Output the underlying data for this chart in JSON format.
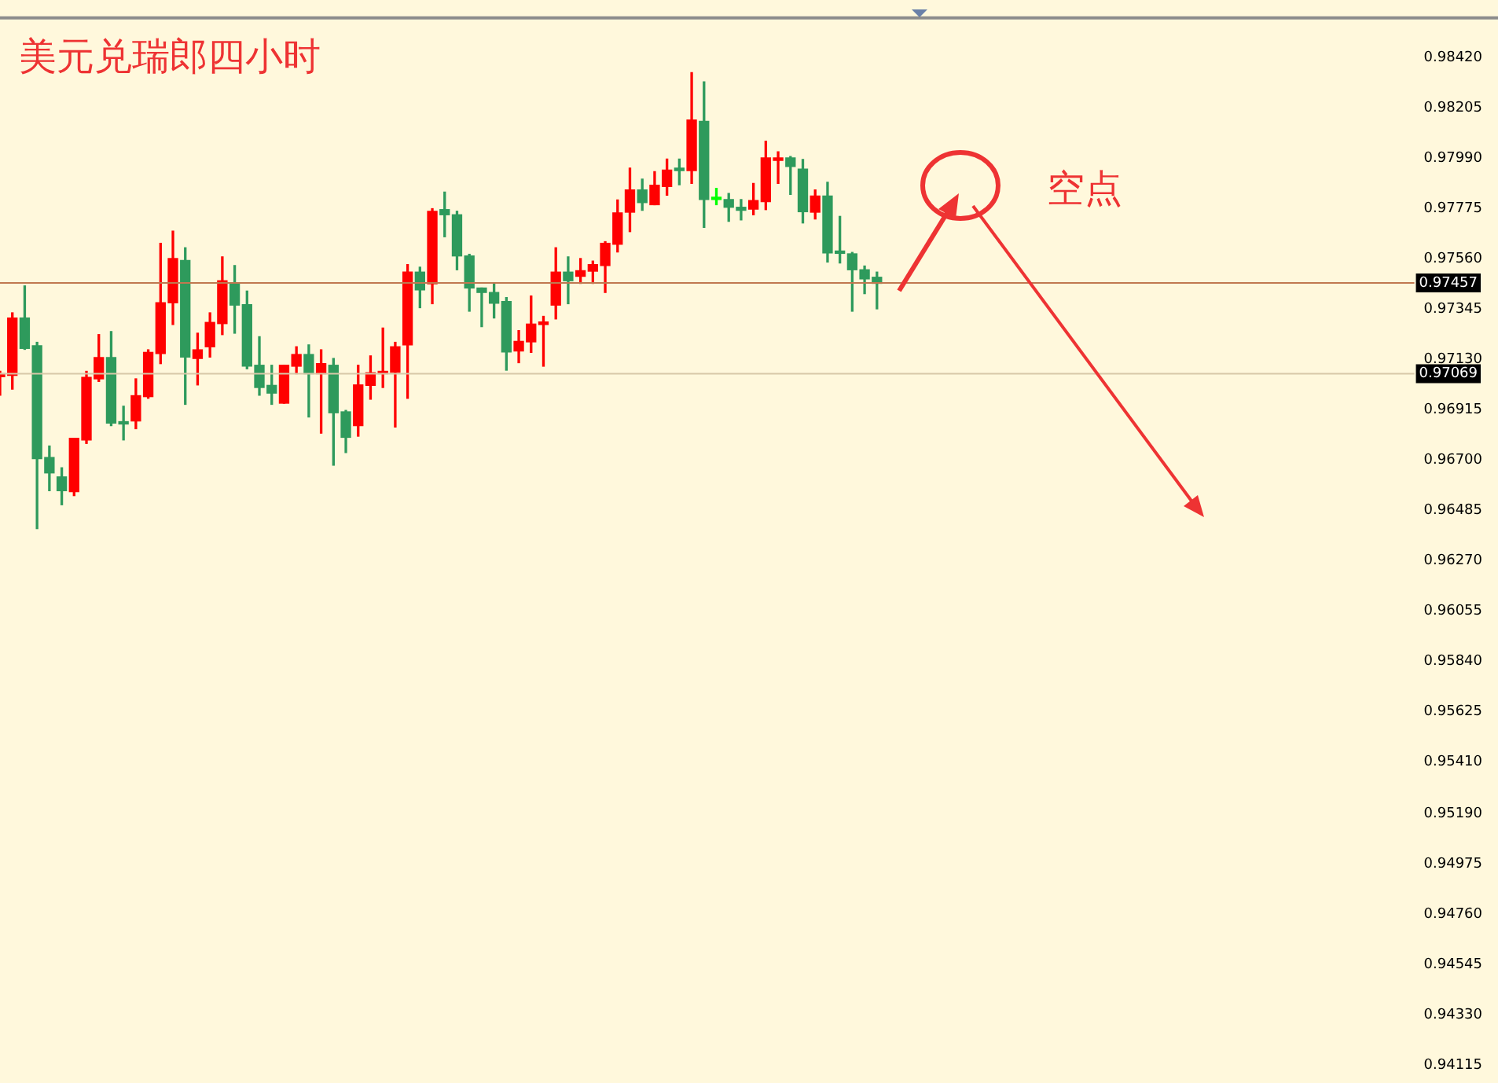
{
  "chart_data": {
    "type": "candlestick",
    "title": "美元兑瑞郎四小时",
    "categories": [
      null,
      null,
      null,
      null,
      null,
      null,
      null,
      null,
      null,
      null,
      null,
      null,
      null,
      null,
      null,
      null,
      null,
      null,
      null,
      null,
      null,
      null,
      null,
      null,
      null,
      null,
      null,
      null,
      null,
      null,
      null,
      null,
      null,
      null,
      null,
      null,
      null,
      null,
      null,
      null,
      null,
      null,
      null,
      null,
      null,
      null,
      null,
      null,
      null,
      null,
      null,
      null,
      null,
      null,
      null,
      null,
      null,
      null,
      null,
      null,
      null,
      null,
      null,
      null,
      null,
      null,
      null,
      null,
      null,
      null,
      null,
      null,
      null,
      null,
      null,
      null,
      null,
      null,
      null,
      null,
      null,
      null,
      null,
      null,
      null,
      null,
      null,
      null,
      null,
      null,
      null,
      null,
      null,
      null,
      null,
      null,
      null,
      null,
      null,
      null,
      null,
      null,
      null,
      null,
      null,
      null,
      null,
      null,
      null,
      null,
      null,
      null,
      null,
      null,
      null
    ],
    "ohlc": [
      [
        0.97056,
        0.97079,
        0.96977,
        0.97069
      ],
      [
        0.97062,
        0.97329,
        0.97003,
        0.97307
      ],
      [
        0.97307,
        0.97444,
        0.97173,
        0.97177
      ],
      [
        0.97188,
        0.97203,
        0.96407,
        0.96706
      ],
      [
        0.96711,
        0.9676,
        0.96569,
        0.96645
      ],
      [
        0.96628,
        0.96667,
        0.96509,
        0.96569
      ],
      [
        0.96565,
        0.96793,
        0.96548,
        0.96793
      ],
      [
        0.96786,
        0.97079,
        0.96771,
        0.97053
      ],
      [
        0.97047,
        0.97236,
        0.97036,
        0.97138
      ],
      [
        0.97138,
        0.97249,
        0.96847,
        0.96858
      ],
      [
        0.96858,
        0.9693,
        0.96786,
        0.96854
      ],
      [
        0.96867,
        0.97047,
        0.96834,
        0.96975
      ],
      [
        0.96971,
        0.97171,
        0.96964,
        0.9716
      ],
      [
        0.97155,
        0.97626,
        0.97112,
        0.97372
      ],
      [
        0.97372,
        0.97678,
        0.97279,
        0.97561
      ],
      [
        0.97553,
        0.97607,
        0.96938,
        0.9714
      ],
      [
        0.97134,
        0.97242,
        0.97021,
        0.97171
      ],
      [
        0.97184,
        0.97329,
        0.9714,
        0.97288
      ],
      [
        0.97283,
        0.97568,
        0.97236,
        0.97466
      ],
      [
        0.97455,
        0.97531,
        0.97242,
        0.97362
      ],
      [
        0.97364,
        0.97422,
        0.9709,
        0.97101
      ],
      [
        0.97105,
        0.97227,
        0.96977,
        0.9701
      ],
      [
        0.97019,
        0.97105,
        0.96938,
        0.96986
      ],
      [
        0.96943,
        0.97105,
        0.96943,
        0.97105
      ],
      [
        0.97101,
        0.97184,
        0.97069,
        0.97151
      ],
      [
        0.97151,
        0.97192,
        0.96884,
        0.97069
      ],
      [
        0.97069,
        0.97171,
        0.96815,
        0.97112
      ],
      [
        0.97105,
        0.97134,
        0.96678,
        0.96902
      ],
      [
        0.96906,
        0.96912,
        0.96732,
        0.96797
      ],
      [
        0.96847,
        0.97105,
        0.96802,
        0.97021
      ],
      [
        0.97019,
        0.97145,
        0.9696,
        0.97073
      ],
      [
        0.97069,
        0.97264,
        0.9701,
        0.97079
      ],
      [
        0.97075,
        0.97203,
        0.96841,
        0.97184
      ],
      [
        0.97192,
        0.97535,
        0.96964,
        0.97503
      ],
      [
        0.97503,
        0.97524,
        0.97351,
        0.97427
      ],
      [
        0.97453,
        0.97774,
        0.97368,
        0.97763
      ],
      [
        0.9777,
        0.97845,
        0.97654,
        0.97748
      ],
      [
        0.97748,
        0.97763,
        0.97513,
        0.97572
      ],
      [
        0.97572,
        0.97579,
        0.97336,
        0.97435
      ],
      [
        0.97435,
        0.97435,
        0.9727,
        0.97416
      ],
      [
        0.97416,
        0.97455,
        0.97307,
        0.9737
      ],
      [
        0.97377,
        0.97394,
        0.97084,
        0.97162
      ],
      [
        0.97166,
        0.97253,
        0.97116,
        0.97207
      ],
      [
        0.97205,
        0.97401,
        0.9716,
        0.97281
      ],
      [
        0.97279,
        0.97314,
        0.97101,
        0.9729
      ],
      [
        0.97362,
        0.97607,
        0.97303,
        0.97503
      ],
      [
        0.97503,
        0.97568,
        0.97368,
        0.97466
      ],
      [
        0.97485,
        0.97561,
        0.97455,
        0.97509
      ],
      [
        0.97507,
        0.9755,
        0.97455,
        0.97535
      ],
      [
        0.97531,
        0.97633,
        0.97416,
        0.97626
      ],
      [
        0.97622,
        0.97811,
        0.97589,
        0.97756
      ],
      [
        0.97759,
        0.97947,
        0.97676,
        0.97854
      ],
      [
        0.97854,
        0.979,
        0.97767,
        0.978
      ],
      [
        0.97791,
        0.97932,
        0.97791,
        0.97874
      ],
      [
        0.97869,
        0.97986,
        0.97832,
        0.97939
      ],
      [
        0.97941,
        0.97986,
        0.97876,
        0.97937
      ],
      [
        0.97937,
        0.98355,
        0.97882,
        0.98153
      ],
      [
        0.98147,
        0.98316,
        0.97694,
        0.97813
      ],
      [
        0.97817,
        0.97861,
        0.97791,
        0.97813
      ],
      [
        0.97813,
        0.97839,
        0.9772,
        0.9778
      ],
      [
        0.9778,
        0.97813,
        0.97726,
        0.97767
      ],
      [
        0.97772,
        0.97882,
        0.97748,
        0.97809
      ],
      [
        0.97804,
        0.98062,
        0.9777,
        0.97991
      ],
      [
        0.9798,
        0.98017,
        0.97882,
        0.97991
      ],
      [
        0.97991,
        0.97997,
        0.97835,
        0.97954
      ],
      [
        0.97943,
        0.97984,
        0.97713,
        0.97761
      ],
      [
        0.97759,
        0.97854,
        0.9773,
        0.97828
      ],
      [
        0.97828,
        0.97887,
        0.97546,
        0.97585
      ],
      [
        0.97587,
        0.97741,
        0.97542,
        0.97583
      ],
      [
        0.97581,
        0.97587,
        0.97336,
        0.97513
      ],
      [
        0.97513,
        0.97529,
        0.97411,
        0.97474
      ],
      [
        0.97481,
        0.97503,
        0.97346,
        0.97455
      ],
      null,
      null,
      null,
      null,
      null,
      null,
      null,
      null,
      null,
      null,
      null,
      null,
      null,
      null,
      null,
      null,
      null,
      null,
      null,
      null,
      null,
      null,
      null,
      null,
      null,
      null,
      null,
      null,
      null,
      null,
      null,
      null,
      null,
      null,
      null,
      null,
      null,
      null,
      null,
      null,
      null,
      null,
      null
    ],
    "colors": [
      "#ff0000",
      "#ff0000",
      "#2e9a5c",
      "#2e9a5c",
      "#2e9a5c",
      "#2e9a5c",
      "#ff0000",
      "#ff0000",
      "#ff0000",
      "#2e9a5c",
      "#2e9a5c",
      "#ff0000",
      "#ff0000",
      "#ff0000",
      "#ff0000",
      "#2e9a5c",
      "#ff0000",
      "#ff0000",
      "#ff0000",
      "#2e9a5c",
      "#2e9a5c",
      "#2e9a5c",
      "#2e9a5c",
      "#ff0000",
      "#ff0000",
      "#2e9a5c",
      "#ff0000",
      "#2e9a5c",
      "#2e9a5c",
      "#ff0000",
      "#ff0000",
      "#ff0000",
      "#ff0000",
      "#ff0000",
      "#2e9a5c",
      "#ff0000",
      "#2e9a5c",
      "#2e9a5c",
      "#2e9a5c",
      "#2e9a5c",
      "#2e9a5c",
      "#2e9a5c",
      "#ff0000",
      "#ff0000",
      "#ff0000",
      "#ff0000",
      "#2e9a5c",
      "#ff0000",
      "#ff0000",
      "#ff0000",
      "#ff0000",
      "#ff0000",
      "#2e9a5c",
      "#ff0000",
      "#ff0000",
      "#2e9a5c",
      "#ff0000",
      "#2e9a5c",
      "#00ff00",
      "#2e9a5c",
      "#2e9a5c",
      "#ff0000",
      "#ff0000",
      "#ff0000",
      "#2e9a5c",
      "#2e9a5c",
      "#ff0000",
      "#2e9a5c",
      "#2e9a5c",
      "#2e9a5c",
      "#2e9a5c",
      "#2e9a5c",
      null,
      null,
      null,
      null,
      null,
      null,
      null,
      null,
      null,
      null,
      null,
      null,
      null,
      null,
      null,
      null,
      null,
      null,
      null,
      null,
      null,
      null,
      null,
      null,
      null,
      null,
      null,
      null,
      null,
      null,
      null,
      null,
      null,
      null,
      null,
      null,
      null,
      null,
      null,
      null,
      null,
      null,
      null
    ],
    "ylim": [
      0.94115,
      0.98589
    ],
    "yticks": [
      {
        "value": 0.9842,
        "label": "0.98420"
      },
      {
        "value": 0.98205,
        "label": "0.98205"
      },
      {
        "value": 0.9799,
        "label": "0.97990"
      },
      {
        "value": 0.97775,
        "label": "0.97775"
      },
      {
        "value": 0.9756,
        "label": "0.97560"
      },
      {
        "value": 0.97345,
        "label": "0.97345"
      },
      {
        "value": 0.9713,
        "label": "0.97130"
      },
      {
        "value": 0.96915,
        "label": "0.96915"
      },
      {
        "value": 0.967,
        "label": "0.96700"
      },
      {
        "value": 0.96485,
        "label": "0.96485"
      },
      {
        "value": 0.9627,
        "label": "0.96270"
      },
      {
        "value": 0.96055,
        "label": "0.96055"
      },
      {
        "value": 0.9584,
        "label": "0.95840"
      },
      {
        "value": 0.95625,
        "label": "0.95625"
      },
      {
        "value": 0.9541,
        "label": "0.95410"
      },
      {
        "value": 0.9519,
        "label": "0.95190"
      },
      {
        "value": 0.94975,
        "label": "0.94975"
      },
      {
        "value": 0.9476,
        "label": "0.94760"
      },
      {
        "value": 0.94545,
        "label": "0.94545"
      },
      {
        "value": 0.9433,
        "label": "0.94330"
      },
      {
        "value": 0.94115,
        "label": "0.94115"
      }
    ],
    "tick_labels": "y",
    "ref_lines": [
      {
        "axis": "y",
        "value": 0.97457,
        "label": "0.97457",
        "color": "#c07850"
      },
      {
        "axis": "y",
        "value": 0.97069,
        "label": "0.97069",
        "color": "#d8c8a8"
      }
    ],
    "annotations": [
      "空点"
    ]
  }
}
